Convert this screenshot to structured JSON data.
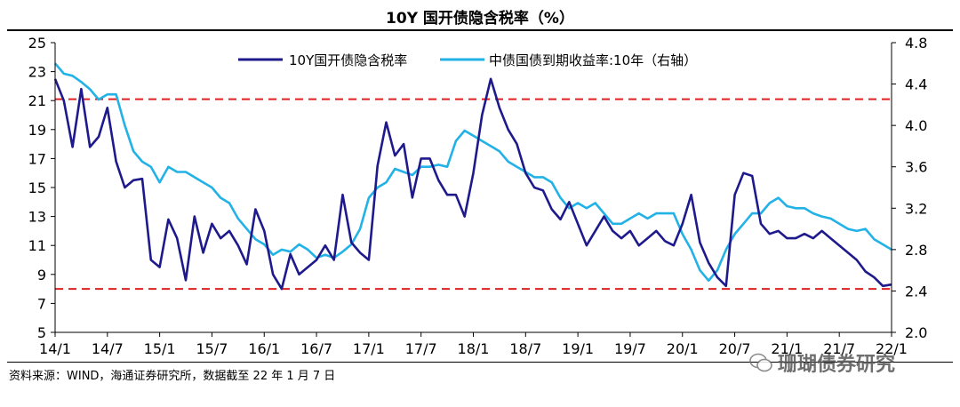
{
  "header": {
    "title": "10Y 国开债隐含税率（%）"
  },
  "footer": {
    "source": "资料来源：WIND，海通证券研究所，数据截至 22 年 1 月 7 日"
  },
  "watermark": {
    "text": "珊瑚债券研究",
    "icon": "wechat-icon"
  },
  "colors": {
    "series1": "#1f1a8c",
    "series2": "#22b2e6",
    "reference": "#e02020",
    "axis": "#000000"
  },
  "chart_data": {
    "type": "line",
    "title": "10Y 国开债隐含税率（%）",
    "x_ticks": [
      "14/1",
      "14/7",
      "15/1",
      "15/7",
      "16/1",
      "16/7",
      "17/1",
      "17/7",
      "18/1",
      "18/7",
      "19/1",
      "19/7",
      "20/1",
      "20/7",
      "21/1",
      "21/7",
      "22/1"
    ],
    "x_range": [
      0,
      96
    ],
    "y_left": {
      "min": 5,
      "max": 25,
      "ticks": [
        "5",
        "7",
        "9",
        "11",
        "13",
        "15",
        "17",
        "19",
        "21",
        "23",
        "25"
      ]
    },
    "y_right": {
      "min": 2.0,
      "max": 4.8,
      "ticks": [
        "2.0",
        "2.4",
        "2.8",
        "3.2",
        "3.6",
        "4.0",
        "4.4",
        "4.8"
      ]
    },
    "reference_lines": [
      {
        "axis": "left",
        "value": 21.1
      },
      {
        "axis": "left",
        "value": 8.0
      }
    ],
    "series": [
      {
        "name": "10Y国开债隐含税率",
        "axis": "left",
        "x": [
          0,
          1,
          2,
          3,
          4,
          5,
          6,
          7,
          8,
          9,
          10,
          11,
          12,
          13,
          14,
          15,
          16,
          17,
          18,
          19,
          20,
          21,
          22,
          23,
          24,
          25,
          26,
          27,
          28,
          29,
          30,
          31,
          32,
          33,
          34,
          35,
          36,
          37,
          38,
          39,
          40,
          41,
          42,
          43,
          44,
          45,
          46,
          47,
          48,
          49,
          50,
          51,
          52,
          53,
          54,
          55,
          56,
          57,
          58,
          59,
          60,
          61,
          62,
          63,
          64,
          65,
          66,
          67,
          68,
          69,
          70,
          71,
          72,
          73,
          74,
          75,
          76,
          77,
          78,
          79,
          80,
          81,
          82,
          83,
          84,
          85,
          86,
          87,
          88,
          89,
          90,
          91,
          92,
          93,
          94,
          95,
          96
        ],
        "y": [
          22.5,
          21.0,
          17.8,
          21.8,
          17.8,
          18.5,
          20.5,
          16.8,
          15.0,
          15.5,
          15.6,
          10.0,
          9.5,
          12.8,
          11.5,
          8.6,
          13.0,
          10.5,
          12.5,
          11.5,
          12.0,
          11.0,
          9.7,
          13.5,
          12.0,
          9.0,
          8.0,
          10.4,
          9.0,
          9.5,
          10.0,
          11.0,
          10.0,
          14.5,
          11.2,
          10.5,
          10.0,
          16.5,
          19.5,
          17.2,
          18.0,
          14.3,
          17.0,
          17.0,
          15.5,
          14.5,
          14.5,
          13.0,
          16.0,
          20.0,
          22.5,
          20.5,
          19.0,
          18.0,
          16.0,
          15.0,
          14.8,
          13.5,
          12.8,
          14.0,
          12.5,
          11.0,
          12.0,
          13.0,
          12.0,
          11.5,
          12.0,
          11.0,
          11.5,
          12.0,
          11.3,
          11.0,
          12.5,
          14.5,
          11.2,
          9.8,
          8.8,
          8.2,
          14.5,
          16.0,
          15.8,
          12.5,
          11.8,
          12.0,
          11.5,
          11.5,
          11.8,
          11.5,
          12.0,
          11.5,
          11.0,
          10.5,
          10.0,
          9.2,
          8.8,
          8.2,
          8.3
        ]
      },
      {
        "name": "中债国债到期收益率:10年（右轴）",
        "axis": "right",
        "x": [
          0,
          1,
          2,
          3,
          4,
          5,
          6,
          7,
          8,
          9,
          10,
          11,
          12,
          13,
          14,
          15,
          16,
          17,
          18,
          19,
          20,
          21,
          22,
          23,
          24,
          25,
          26,
          27,
          28,
          29,
          30,
          31,
          32,
          33,
          34,
          35,
          36,
          37,
          38,
          39,
          40,
          41,
          42,
          43,
          44,
          45,
          46,
          47,
          48,
          49,
          50,
          51,
          52,
          53,
          54,
          55,
          56,
          57,
          58,
          59,
          60,
          61,
          62,
          63,
          64,
          65,
          66,
          67,
          68,
          69,
          70,
          71,
          72,
          73,
          74,
          75,
          76,
          77,
          78,
          79,
          80,
          81,
          82,
          83,
          84,
          85,
          86,
          87,
          88,
          89,
          90,
          91,
          92,
          93,
          94,
          95,
          96
        ],
        "y": [
          4.6,
          4.5,
          4.48,
          4.42,
          4.35,
          4.25,
          4.3,
          4.3,
          4.0,
          3.75,
          3.65,
          3.6,
          3.45,
          3.6,
          3.55,
          3.55,
          3.5,
          3.45,
          3.4,
          3.3,
          3.25,
          3.1,
          3.0,
          2.9,
          2.85,
          2.75,
          2.8,
          2.78,
          2.85,
          2.8,
          2.72,
          2.75,
          2.72,
          2.78,
          2.85,
          3.0,
          3.3,
          3.4,
          3.45,
          3.58,
          3.55,
          3.52,
          3.6,
          3.6,
          3.62,
          3.6,
          3.85,
          3.95,
          3.9,
          3.85,
          3.8,
          3.75,
          3.65,
          3.6,
          3.55,
          3.5,
          3.5,
          3.45,
          3.3,
          3.2,
          3.25,
          3.2,
          3.25,
          3.15,
          3.05,
          3.05,
          3.1,
          3.15,
          3.1,
          3.15,
          3.15,
          3.15,
          2.95,
          2.8,
          2.6,
          2.5,
          2.6,
          2.8,
          2.95,
          3.05,
          3.15,
          3.15,
          3.25,
          3.3,
          3.22,
          3.2,
          3.2,
          3.15,
          3.12,
          3.1,
          3.05,
          3.0,
          2.98,
          3.0,
          2.9,
          2.85,
          2.8
        ]
      }
    ]
  }
}
